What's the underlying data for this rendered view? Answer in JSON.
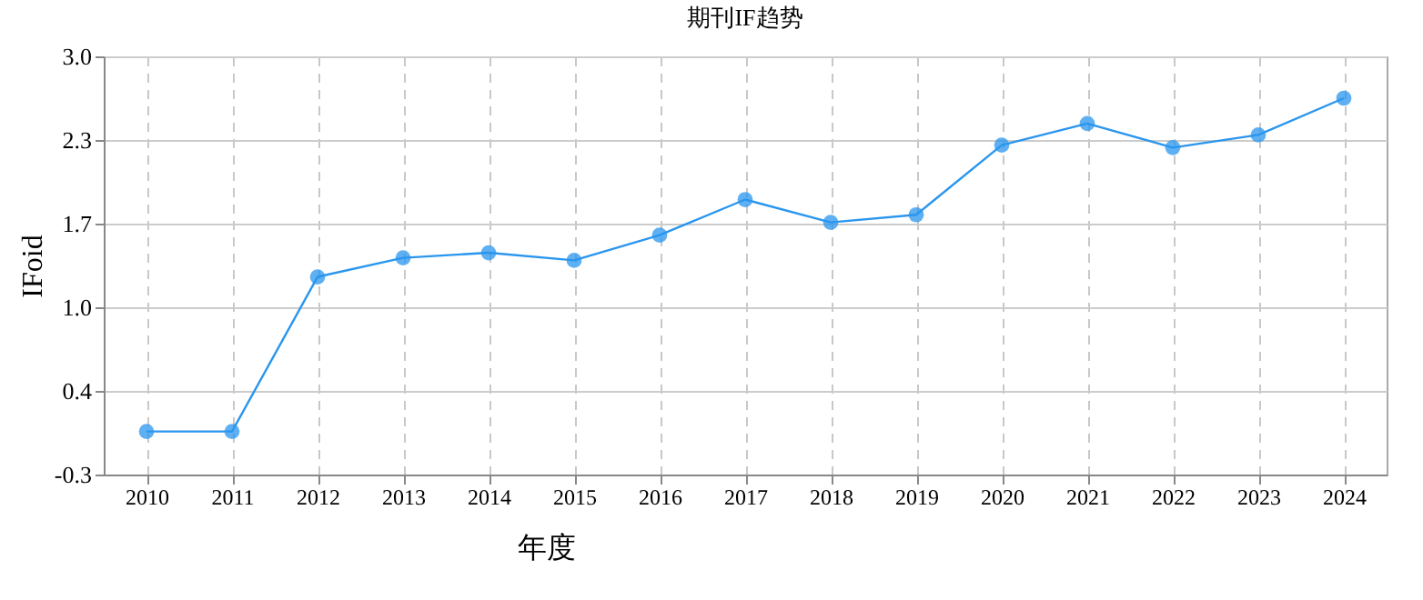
{
  "chart_data": {
    "type": "line",
    "title": "期刊IF趋势",
    "xlabel": "年度",
    "ylabel": "IFoid",
    "categories": [
      "2010",
      "2011",
      "2012",
      "2013",
      "2014",
      "2015",
      "2016",
      "2017",
      "2018",
      "2019",
      "2020",
      "2021",
      "2022",
      "2023",
      "2024"
    ],
    "series": [
      {
        "color": "#2a96ee",
        "values": [
          0.04,
          0.04,
          1.26,
          1.41,
          1.45,
          1.39,
          1.59,
          1.87,
          1.69,
          1.75,
          2.3,
          2.47,
          2.28,
          2.38,
          2.67
        ]
      }
    ],
    "ylim": [
      -0.3,
      3.0
    ],
    "yticks": [
      {
        "value": -0.3,
        "label": "-0.3"
      },
      {
        "value": 0.36,
        "label": "0.4"
      },
      {
        "value": 1.02,
        "label": "1.0"
      },
      {
        "value": 1.68,
        "label": "1.7"
      },
      {
        "value": 2.34,
        "label": "2.3"
      },
      {
        "value": 3.0,
        "label": "3.0"
      }
    ],
    "grid": true,
    "marker": "circle",
    "line_style": "solid"
  }
}
